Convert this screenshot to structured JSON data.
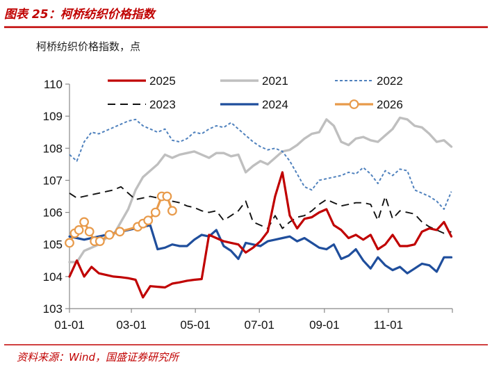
{
  "header": {
    "title": "图表 25：柯桥纺织价格指数"
  },
  "chart_data": {
    "type": "line",
    "title": "柯桥纺织价格指数",
    "unit_label": "柯桥纺织价格指数，点",
    "xlabel": "",
    "ylabel": "",
    "ylim": [
      103,
      110
    ],
    "yticks": [
      103,
      104,
      105,
      106,
      107,
      108,
      109,
      110
    ],
    "xlim": [
      0,
      365
    ],
    "x_ticks": [
      {
        "label": "01-01",
        "day": 0
      },
      {
        "label": "03-01",
        "day": 59
      },
      {
        "label": "05-01",
        "day": 120
      },
      {
        "label": "07-01",
        "day": 181
      },
      {
        "label": "09-01",
        "day": 243
      },
      {
        "label": "11-01",
        "day": 304
      }
    ],
    "grid": false,
    "legend_position": "top",
    "series": [
      {
        "name": "2025",
        "color": "#c00000",
        "style": "solid",
        "width": 3.2,
        "markers": false,
        "x": [
          0,
          7,
          14,
          21,
          28,
          35,
          42,
          49,
          56,
          63,
          70,
          77,
          84,
          91,
          98,
          105,
          112,
          119,
          126,
          133,
          140,
          147,
          154,
          161,
          168,
          175,
          182,
          189,
          196,
          203,
          210,
          217,
          224,
          231,
          238,
          245,
          252,
          259,
          266,
          273,
          280,
          287,
          294,
          301,
          308,
          315,
          322,
          329,
          336,
          343,
          350,
          357,
          364
        ],
        "values": [
          104.0,
          104.5,
          104.0,
          104.3,
          104.1,
          104.05,
          104.0,
          103.98,
          103.95,
          103.9,
          103.35,
          103.7,
          103.68,
          103.66,
          103.78,
          103.82,
          103.87,
          103.9,
          103.92,
          105.3,
          105.2,
          105.1,
          105.05,
          105.0,
          104.75,
          104.9,
          105.1,
          105.4,
          106.5,
          107.25,
          105.9,
          105.5,
          105.8,
          105.85,
          106.0,
          106.1,
          105.6,
          105.45,
          105.2,
          105.3,
          105.15,
          105.3,
          104.85,
          105.0,
          105.3,
          104.95,
          104.95,
          105.0,
          105.4,
          105.5,
          105.45,
          105.7,
          105.25
        ]
      },
      {
        "name": "2021",
        "color": "#bfbfbf",
        "style": "solid",
        "width": 3.4,
        "markers": false,
        "x": [
          0,
          7,
          14,
          21,
          28,
          35,
          42,
          49,
          56,
          63,
          70,
          77,
          84,
          91,
          98,
          105,
          112,
          119,
          126,
          133,
          140,
          147,
          154,
          161,
          168,
          175,
          182,
          189,
          196,
          203,
          210,
          217,
          224,
          231,
          238,
          245,
          252,
          259,
          266,
          273,
          280,
          287,
          294,
          301,
          308,
          315,
          322,
          329,
          336,
          343,
          350,
          357,
          364
        ],
        "values": [
          104.45,
          104.45,
          104.8,
          104.9,
          105.0,
          105.2,
          105.3,
          105.7,
          106.1,
          106.7,
          107.1,
          107.3,
          107.5,
          107.8,
          107.7,
          107.8,
          107.85,
          107.9,
          107.8,
          107.7,
          107.85,
          107.85,
          107.75,
          107.8,
          107.25,
          107.45,
          107.6,
          107.5,
          107.7,
          107.9,
          107.95,
          108.1,
          108.3,
          108.45,
          108.5,
          108.9,
          108.7,
          108.2,
          108.1,
          108.3,
          108.35,
          108.25,
          108.2,
          108.4,
          108.6,
          108.95,
          108.9,
          108.7,
          108.65,
          108.45,
          108.2,
          108.25,
          108.05
        ]
      },
      {
        "name": "2022",
        "color": "#4f81bd",
        "style": "dashed",
        "width": 2.0,
        "markers": false,
        "x": [
          0,
          7,
          14,
          21,
          28,
          35,
          42,
          49,
          56,
          63,
          70,
          77,
          84,
          91,
          98,
          105,
          112,
          119,
          126,
          133,
          140,
          147,
          154,
          161,
          168,
          175,
          182,
          189,
          196,
          203,
          210,
          217,
          224,
          231,
          238,
          245,
          252,
          259,
          266,
          273,
          280,
          287,
          294,
          301,
          308,
          315,
          322,
          329,
          336,
          343,
          350,
          357,
          364
        ],
        "values": [
          107.8,
          107.6,
          108.2,
          108.5,
          108.45,
          108.55,
          108.65,
          108.75,
          108.85,
          108.9,
          108.7,
          108.6,
          108.5,
          108.6,
          108.25,
          108.2,
          108.3,
          108.5,
          108.45,
          108.6,
          108.7,
          108.65,
          108.8,
          108.6,
          108.4,
          108.2,
          108.05,
          107.95,
          108.0,
          107.9,
          107.6,
          107.2,
          106.8,
          106.7,
          107.0,
          107.05,
          107.1,
          107.15,
          107.25,
          107.2,
          107.4,
          107.2,
          106.9,
          107.3,
          107.15,
          107.35,
          107.3,
          106.7,
          106.6,
          106.5,
          106.35,
          106.1,
          106.65
        ]
      },
      {
        "name": "2023",
        "color": "#111111",
        "style": "dashed-long",
        "width": 1.9,
        "markers": false,
        "x": [
          0,
          7,
          14,
          21,
          28,
          35,
          42,
          49,
          56,
          63,
          70,
          77,
          84,
          91,
          98,
          105,
          112,
          119,
          126,
          133,
          140,
          147,
          154,
          161,
          168,
          175,
          182,
          189,
          196,
          203,
          210,
          217,
          224,
          231,
          238,
          245,
          252,
          259,
          266,
          273,
          280,
          287,
          294,
          301,
          308,
          315,
          322,
          329,
          336,
          343,
          350,
          357,
          364
        ],
        "values": [
          106.6,
          106.45,
          106.5,
          106.55,
          106.6,
          106.65,
          106.7,
          106.8,
          106.6,
          106.4,
          106.45,
          106.5,
          106.45,
          106.5,
          106.35,
          106.3,
          106.2,
          106.15,
          106.05,
          106.0,
          106.05,
          105.75,
          105.9,
          106.05,
          106.35,
          105.7,
          105.6,
          105.5,
          105.9,
          105.5,
          105.7,
          105.85,
          105.9,
          106.05,
          106.25,
          106.4,
          106.3,
          106.2,
          106.25,
          106.3,
          106.3,
          106.25,
          105.75,
          106.5,
          105.8,
          106.05,
          106.0,
          105.95,
          105.7,
          105.55,
          105.45,
          105.35,
          105.4
        ]
      },
      {
        "name": "2024",
        "color": "#1f4e9c",
        "style": "solid",
        "width": 3.2,
        "markers": false,
        "x": [
          0,
          7,
          14,
          21,
          28,
          35,
          42,
          49,
          56,
          63,
          70,
          77,
          84,
          91,
          98,
          105,
          112,
          119,
          126,
          133,
          140,
          147,
          154,
          161,
          168,
          175,
          182,
          189,
          196,
          203,
          210,
          217,
          224,
          231,
          238,
          245,
          252,
          259,
          266,
          273,
          280,
          287,
          294,
          301,
          308,
          315,
          322,
          329,
          336,
          343,
          350,
          357,
          364
        ],
        "values": [
          105.25,
          105.2,
          105.15,
          105.2,
          105.25,
          105.3,
          105.35,
          105.4,
          105.45,
          105.5,
          105.55,
          105.6,
          104.85,
          104.9,
          105.0,
          104.95,
          104.95,
          105.15,
          105.3,
          105.25,
          105.45,
          104.95,
          104.8,
          104.55,
          105.05,
          105.0,
          104.95,
          105.1,
          105.15,
          105.2,
          105.25,
          105.1,
          105.2,
          105.05,
          104.9,
          104.85,
          105.0,
          104.55,
          104.65,
          104.85,
          104.5,
          104.25,
          104.6,
          104.35,
          104.2,
          104.3,
          104.1,
          104.25,
          104.4,
          104.35,
          104.15,
          104.6,
          104.6
        ]
      },
      {
        "name": "2026",
        "color": "#e89a4a",
        "style": "solid",
        "width": 3.2,
        "markers": true,
        "x": [
          0,
          5,
          9,
          14,
          19,
          24,
          29,
          38,
          48,
          65,
          70,
          75,
          82,
          88,
          93,
          98
        ],
        "values": [
          105.05,
          105.35,
          105.45,
          105.7,
          105.4,
          105.1,
          105.1,
          105.3,
          105.4,
          105.55,
          105.65,
          105.75,
          106.0,
          106.5,
          106.5,
          106.05
        ]
      }
    ]
  },
  "footer": {
    "source": "资料来源：Wind，国盛证券研究所"
  }
}
